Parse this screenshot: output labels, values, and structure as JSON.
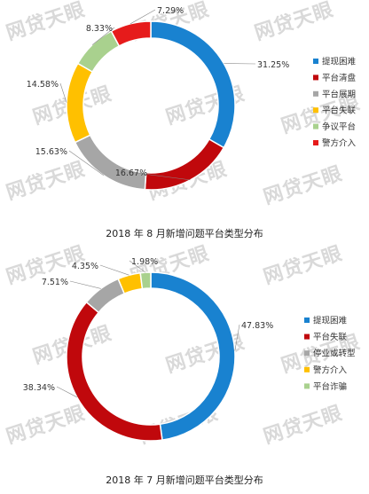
{
  "watermark": "网贷天眼",
  "chart_data": [
    {
      "type": "pie",
      "title": "2018 年 8 月新增问题平台类型分布",
      "labels": [
        "提现困难",
        "平台清盘",
        "平台展期",
        "平台失联",
        "争议平台",
        "警方介入"
      ],
      "values": [
        31.25,
        16.67,
        15.63,
        14.58,
        8.33,
        7.29
      ],
      "value_labels": [
        "31.25%",
        "16.67%",
        "15.63%",
        "14.58%",
        "8.33%",
        "7.29%"
      ],
      "colors": [
        "#1982d0",
        "#c0080c",
        "#a6a6a6",
        "#ffc000",
        "#a9d18e",
        "#e61b1b"
      ],
      "legend_position": "right"
    },
    {
      "type": "pie",
      "title": "2018 年 7 月新增问题平台类型分布",
      "labels": [
        "提现困难",
        "平台失联",
        "停业或转型",
        "警方介入",
        "平台诈骗"
      ],
      "values": [
        47.83,
        38.34,
        7.51,
        4.35,
        1.98
      ],
      "value_labels": [
        "47.83%",
        "38.34%",
        "7.51%",
        "4.35%",
        "1.98%"
      ],
      "colors": [
        "#1982d0",
        "#c0080c",
        "#a6a6a6",
        "#ffc000",
        "#a9d18e"
      ],
      "legend_position": "right"
    }
  ]
}
